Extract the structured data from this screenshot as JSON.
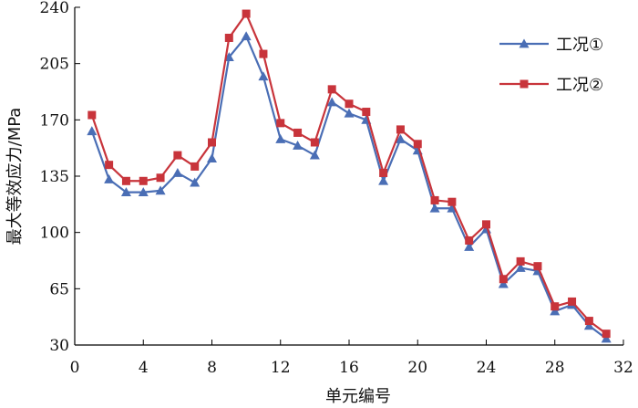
{
  "chart_data": {
    "type": "line",
    "title": "",
    "xlabel": "单元编号",
    "ylabel": "最大等效应力/MPa",
    "xlim": [
      0,
      32
    ],
    "ylim": [
      30,
      240
    ],
    "xticks": [
      0,
      4,
      8,
      12,
      16,
      20,
      24,
      28,
      32
    ],
    "yticks": [
      30,
      65,
      100,
      135,
      170,
      205,
      240
    ],
    "grid": false,
    "legend_position": "top-right",
    "x": [
      1,
      2,
      3,
      4,
      5,
      6,
      7,
      8,
      9,
      10,
      11,
      12,
      13,
      14,
      15,
      16,
      17,
      18,
      19,
      20,
      21,
      22,
      23,
      24,
      25,
      26,
      27,
      28,
      29,
      30,
      31
    ],
    "series": [
      {
        "name": "工况①",
        "color": "#4a6eb5",
        "marker": "triangle",
        "values": [
          163,
          133,
          125,
          125,
          126,
          137,
          131,
          146,
          209,
          222,
          197,
          158,
          154,
          148,
          181,
          174,
          170,
          132,
          158,
          151,
          115,
          115,
          91,
          102,
          68,
          78,
          76,
          51,
          55,
          42,
          34
        ]
      },
      {
        "name": "工况②",
        "color": "#c8343b",
        "marker": "square",
        "values": [
          173,
          142,
          132,
          132,
          134,
          148,
          141,
          156,
          221,
          236,
          211,
          168,
          162,
          156,
          189,
          180,
          175,
          137,
          164,
          155,
          120,
          119,
          95,
          105,
          71,
          82,
          79,
          54,
          57,
          45,
          37
        ]
      }
    ]
  }
}
